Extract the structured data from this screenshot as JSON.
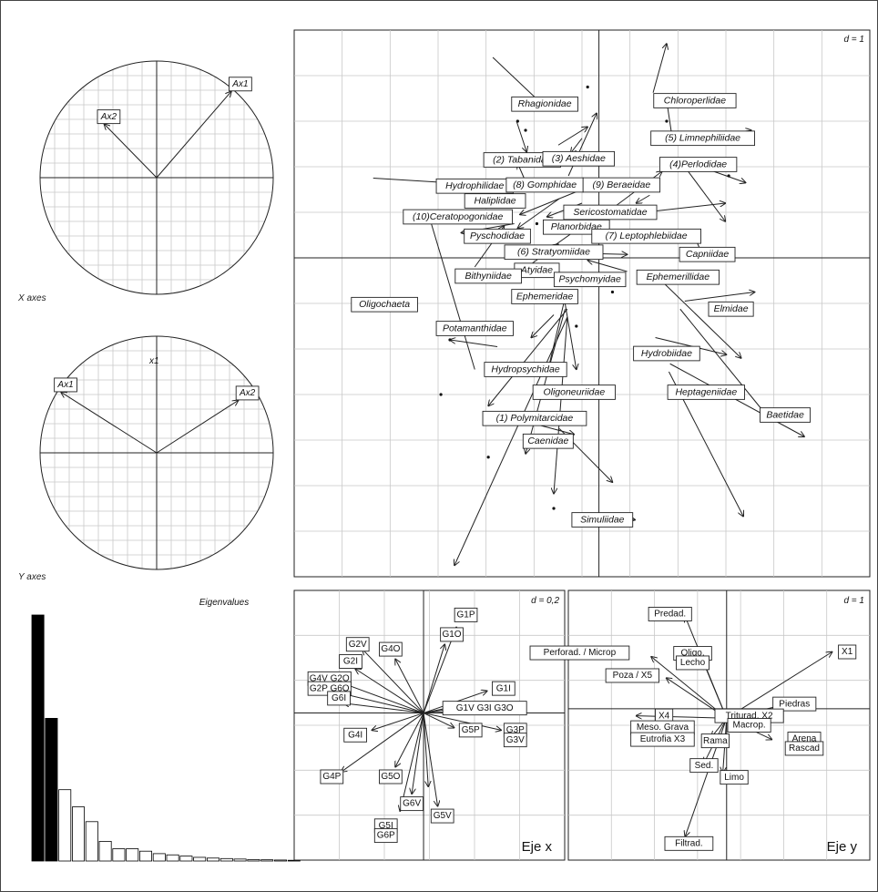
{
  "captions": {
    "x_axes": "X axes",
    "y_axes": "Y axes",
    "eigenvalues": "Eigenvalues"
  },
  "chart_data": [
    {
      "id": "circle-x",
      "type": "scatter",
      "title": "X axes",
      "subtitle": "",
      "arrows": [
        {
          "label": "Ax1",
          "x": 0.64,
          "y": 0.74
        },
        {
          "label": "Ax2",
          "x": -0.45,
          "y": 0.46
        }
      ],
      "xlim": [
        -1,
        1
      ],
      "ylim": [
        -1,
        1
      ],
      "grid": true
    },
    {
      "id": "circle-y",
      "type": "scatter",
      "title": "Y axes",
      "axis_label": "x1",
      "arrows": [
        {
          "label": "Ax1",
          "x": -0.82,
          "y": 0.52
        },
        {
          "label": "Ax2",
          "x": 0.7,
          "y": 0.45
        }
      ],
      "xlim": [
        -1,
        1
      ],
      "ylim": [
        -1,
        1
      ],
      "grid": true
    },
    {
      "id": "eigen",
      "type": "bar",
      "title": "Eigenvalues",
      "values": [
        100,
        58,
        29,
        22,
        16,
        8,
        5,
        5,
        4,
        3,
        2.5,
        2,
        1.5,
        1.2,
        1,
        0.8,
        0.6,
        0.5,
        0.4,
        0.3
      ],
      "filled_count": 2,
      "ylim": [
        0,
        100
      ]
    },
    {
      "id": "taxa",
      "type": "scatter",
      "title": "",
      "scale_label": "d = 1",
      "xlim": [
        -2.7,
        2.4
      ],
      "ylim": [
        -2.8,
        2.0
      ],
      "grid": true,
      "labels": [
        {
          "text": "Rhagionidae",
          "x": -0.48,
          "y": 1.35
        },
        {
          "text": "Chloroperlidae",
          "x": 0.85,
          "y": 1.38
        },
        {
          "text": "(5) Limnephiliidae",
          "x": 0.92,
          "y": 1.05
        },
        {
          "text": "(2) Tabanidae",
          "x": -0.68,
          "y": 0.86
        },
        {
          "text": "(3) Aeshidae",
          "x": -0.18,
          "y": 0.87
        },
        {
          "text": "(4)Perlodidae",
          "x": 0.88,
          "y": 0.82
        },
        {
          "text": "Hydrophilidae",
          "x": -1.1,
          "y": 0.63
        },
        {
          "text": "(8) Gomphidae",
          "x": -0.48,
          "y": 0.64
        },
        {
          "text": "(9) Beraeidae",
          "x": 0.2,
          "y": 0.64
        },
        {
          "text": "Haliplidae",
          "x": -0.92,
          "y": 0.5
        },
        {
          "text": "Sericostomatidae",
          "x": 0.1,
          "y": 0.4
        },
        {
          "text": "(10)Ceratopogonidae",
          "x": -1.25,
          "y": 0.36
        },
        {
          "text": "Planorbidae",
          "x": -0.2,
          "y": 0.27
        },
        {
          "text": "(7) Leptophlebiidae",
          "x": 0.42,
          "y": 0.19
        },
        {
          "text": "Pyschodidae",
          "x": -0.9,
          "y": 0.19
        },
        {
          "text": "Capniidae",
          "x": 0.96,
          "y": 0.03
        },
        {
          "text": "(6) Stratyomiidae",
          "x": -0.4,
          "y": 0.05
        },
        {
          "text": "Atyidae",
          "x": -0.55,
          "y": -0.11
        },
        {
          "text": "Psychomyidae",
          "x": -0.08,
          "y": -0.19
        },
        {
          "text": "Ephemerillidae",
          "x": 0.7,
          "y": -0.17
        },
        {
          "text": "Bithyniidae",
          "x": -0.98,
          "y": -0.16
        },
        {
          "text": "Oligochaeta",
          "x": -1.9,
          "y": -0.41
        },
        {
          "text": "Ephemeridae",
          "x": -0.48,
          "y": -0.34
        },
        {
          "text": "Elmidae",
          "x": 1.17,
          "y": -0.45
        },
        {
          "text": "Potamanthidae",
          "x": -1.1,
          "y": -0.62
        },
        {
          "text": "Hydrobiidae",
          "x": 0.6,
          "y": -0.84
        },
        {
          "text": "Hydropsychidae",
          "x": -0.65,
          "y": -0.98
        },
        {
          "text": "Oligoneuriidae",
          "x": -0.22,
          "y": -1.18
        },
        {
          "text": "Heptageniidae",
          "x": 0.95,
          "y": -1.18
        },
        {
          "text": "Baetidae",
          "x": 1.65,
          "y": -1.38
        },
        {
          "text": "(1) Polymitarcidae",
          "x": -0.57,
          "y": -1.41
        },
        {
          "text": "Caenidae",
          "x": -0.45,
          "y": -1.61
        },
        {
          "text": "Simuliidae",
          "x": 0.03,
          "y": -2.3
        }
      ],
      "arrows": [
        {
          "x0": -0.94,
          "y0": 1.76,
          "x1": -0.45,
          "y1": 1.3
        },
        {
          "x0": -0.73,
          "y0": 1.2,
          "x1": -0.64,
          "y1": 0.93
        },
        {
          "x0": -0.15,
          "y0": 1.05,
          "x1": -0.25,
          "y1": 0.92
        },
        {
          "x0": -0.36,
          "y0": 0.99,
          "x1": -0.1,
          "y1": 1.15
        },
        {
          "x0": -0.27,
          "y0": 0.72,
          "x1": -0.02,
          "y1": 1.27
        },
        {
          "x0": 0.48,
          "y0": 1.45,
          "x1": 0.6,
          "y1": 1.88
        },
        {
          "x0": 0.6,
          "y0": 1.38,
          "x1": 0.65,
          "y1": 1.05
        },
        {
          "x0": 0.55,
          "y0": 1.0,
          "x1": 1.35,
          "y1": 1.12
        },
        {
          "x0": 0.7,
          "y0": 0.88,
          "x1": 1.12,
          "y1": 0.32
        },
        {
          "x0": 0.9,
          "y0": 0.8,
          "x1": 1.3,
          "y1": 0.66
        },
        {
          "x0": -2.0,
          "y0": 0.7,
          "x1": -1.18,
          "y1": 0.65
        },
        {
          "x0": -0.88,
          "y0": 0.68,
          "x1": -1.22,
          "y1": 0.6
        },
        {
          "x0": -0.65,
          "y0": 0.67,
          "x1": -0.72,
          "y1": 0.83
        },
        {
          "x0": 0.05,
          "y0": 0.68,
          "x1": -0.7,
          "y1": 0.38
        },
        {
          "x0": -0.35,
          "y0": 0.52,
          "x1": -0.72,
          "y1": 0.26
        },
        {
          "x0": -0.15,
          "y0": 0.48,
          "x1": -0.46,
          "y1": 0.36
        },
        {
          "x0": 0.1,
          "y0": 0.42,
          "x1": 0.56,
          "y1": 0.76
        },
        {
          "x0": 0.45,
          "y0": 0.55,
          "x1": 0.33,
          "y1": 0.48
        },
        {
          "x0": 0.22,
          "y0": 0.38,
          "x1": 1.12,
          "y1": 0.48
        },
        {
          "x0": -0.75,
          "y0": 0.3,
          "x1": -1.22,
          "y1": 0.22
        },
        {
          "x0": -0.15,
          "y0": 0.28,
          "x1": -0.52,
          "y1": 0.02
        },
        {
          "x0": 0.22,
          "y0": 0.2,
          "x1": 0.84,
          "y1": 0.16
        },
        {
          "x0": 0.85,
          "y0": 0.18,
          "x1": 0.92,
          "y1": 0.02
        },
        {
          "x0": -1.1,
          "y0": -0.08,
          "x1": -0.84,
          "y1": 0.28
        },
        {
          "x0": -1.1,
          "y0": -0.98,
          "x1": -1.5,
          "y1": 0.35
        },
        {
          "x0": -0.8,
          "y0": -0.2,
          "x1": -0.36,
          "y1": 0.12
        },
        {
          "x0": 0.25,
          "y0": -0.12,
          "x1": -0.1,
          "y1": -0.02
        },
        {
          "x0": -0.15,
          "y0": 0.04,
          "x1": 0.25,
          "y1": 0.03
        },
        {
          "x0": 0.5,
          "y0": -0.15,
          "x1": 1.26,
          "y1": -0.88
        },
        {
          "x0": 0.76,
          "y0": -0.38,
          "x1": 1.38,
          "y1": -0.3
        },
        {
          "x0": 0.72,
          "y0": -0.45,
          "x1": 1.5,
          "y1": -1.4
        },
        {
          "x0": 0.5,
          "y0": -0.7,
          "x1": 1.13,
          "y1": -0.85
        },
        {
          "x0": -0.9,
          "y0": -0.78,
          "x1": -1.32,
          "y1": -0.72
        },
        {
          "x0": -0.3,
          "y0": -0.35,
          "x1": -0.45,
          "y1": -0.98
        },
        {
          "x0": -0.3,
          "y0": -0.4,
          "x1": -0.2,
          "y1": -0.98
        },
        {
          "x0": -0.4,
          "y0": -0.5,
          "x1": -0.6,
          "y1": -0.7
        },
        {
          "x0": -0.3,
          "y0": -0.45,
          "x1": -0.65,
          "y1": -1.72
        },
        {
          "x0": -0.28,
          "y0": -0.45,
          "x1": -0.98,
          "y1": -1.3
        },
        {
          "x0": -0.28,
          "y0": -0.52,
          "x1": -0.4,
          "y1": -2.07
        },
        {
          "x0": -0.28,
          "y0": -0.52,
          "x1": -1.28,
          "y1": -2.7
        },
        {
          "x0": -0.6,
          "y0": -1.45,
          "x1": -0.22,
          "y1": -1.55
        },
        {
          "x0": -0.35,
          "y0": -1.5,
          "x1": 0.12,
          "y1": -1.97
        },
        {
          "x0": 0.63,
          "y0": -0.93,
          "x1": 1.82,
          "y1": -1.57
        },
        {
          "x0": 0.62,
          "y0": -1.0,
          "x1": 1.28,
          "y1": -2.27
        },
        {
          "x0": -0.06,
          "y0": -2.24,
          "x1": 0.32,
          "y1": -2.3
        }
      ],
      "points": [
        {
          "x": -0.1,
          "y": 1.5
        },
        {
          "x": -0.72,
          "y": 1.2
        },
        {
          "x": -0.65,
          "y": 1.12
        },
        {
          "x": 0.6,
          "y": 1.2
        },
        {
          "x": 1.15,
          "y": 0.72
        },
        {
          "x": -0.75,
          "y": 0.55
        },
        {
          "x": -1.5,
          "y": 0.4
        },
        {
          "x": -0.55,
          "y": 0.3
        },
        {
          "x": 0.12,
          "y": -0.3
        },
        {
          "x": -1.32,
          "y": -0.72
        },
        {
          "x": -1.4,
          "y": -1.2
        },
        {
          "x": -0.98,
          "y": -1.75
        },
        {
          "x": -0.2,
          "y": -0.6
        },
        {
          "x": -0.4,
          "y": -2.2
        }
      ]
    },
    {
      "id": "eje-x",
      "type": "scatter",
      "title": "Eje x",
      "scale_label": "d = 0,2",
      "labels": [
        {
          "text": "G1P",
          "x": 0.18,
          "y": 0.4
        },
        {
          "text": "G1O",
          "x": 0.12,
          "y": 0.32
        },
        {
          "text": "G2V",
          "x": -0.28,
          "y": 0.28
        },
        {
          "text": "G4O",
          "x": -0.14,
          "y": 0.26
        },
        {
          "text": "G2I",
          "x": -0.31,
          "y": 0.21
        },
        {
          "text": "G1I",
          "x": 0.34,
          "y": 0.1
        },
        {
          "text": "G4V G2O",
          "x": -0.4,
          "y": 0.14
        },
        {
          "text": "G2P G6O",
          "x": -0.4,
          "y": 0.1
        },
        {
          "text": "G6I",
          "x": -0.36,
          "y": 0.06
        },
        {
          "text": "G1V   G3I   G3O",
          "x": 0.26,
          "y": 0.02
        },
        {
          "text": "G4I",
          "x": -0.29,
          "y": -0.09
        },
        {
          "text": "G5P",
          "x": 0.2,
          "y": -0.07
        },
        {
          "text": "G3P",
          "x": 0.39,
          "y": -0.07
        },
        {
          "text": "G3V",
          "x": 0.39,
          "y": -0.11
        },
        {
          "text": "G4P",
          "x": -0.39,
          "y": -0.26
        },
        {
          "text": "G5O",
          "x": -0.14,
          "y": -0.26
        },
        {
          "text": "G6V",
          "x": -0.05,
          "y": -0.37
        },
        {
          "text": "G5V",
          "x": 0.08,
          "y": -0.42
        },
        {
          "text": "G5I",
          "x": -0.16,
          "y": -0.46
        },
        {
          "text": "G6P",
          "x": -0.16,
          "y": -0.5
        }
      ],
      "arrows": [
        {
          "x1": 0.14,
          "y1": 0.35
        },
        {
          "x1": 0.09,
          "y1": 0.28
        },
        {
          "x1": -0.26,
          "y1": 0.26
        },
        {
          "x1": -0.12,
          "y1": 0.22
        },
        {
          "x1": -0.29,
          "y1": 0.18
        },
        {
          "x1": 0.27,
          "y1": 0.09
        },
        {
          "x1": -0.34,
          "y1": 0.12
        },
        {
          "x1": -0.35,
          "y1": 0.08
        },
        {
          "x1": -0.34,
          "y1": 0.04
        },
        {
          "x1": 0.22,
          "y1": 0.03
        },
        {
          "x1": 0.2,
          "y1": 0.04
        },
        {
          "x1": 0.28,
          "y1": 0.01
        },
        {
          "x1": -0.22,
          "y1": -0.07
        },
        {
          "x1": 0.13,
          "y1": -0.06
        },
        {
          "x1": 0.33,
          "y1": -0.07
        },
        {
          "x1": -0.35,
          "y1": -0.24
        },
        {
          "x1": -0.12,
          "y1": -0.22
        },
        {
          "x1": -0.05,
          "y1": -0.33
        },
        {
          "x1": 0.06,
          "y1": -0.38
        },
        {
          "x1": -0.1,
          "y1": -0.4
        },
        {
          "x1": 0.02,
          "y1": -0.3
        }
      ],
      "xlim": [
        -0.55,
        0.6
      ],
      "ylim": [
        -0.6,
        0.5
      ],
      "grid": true
    },
    {
      "id": "eje-y",
      "type": "scatter",
      "title": "Eje y",
      "scale_label": "d = 1",
      "labels": [
        {
          "text": "Predad.",
          "x": -0.75,
          "y": 2.0
        },
        {
          "text": "Perforad. / Microp",
          "x": -1.95,
          "y": 1.18
        },
        {
          "text": "Oligo.",
          "x": -0.45,
          "y": 1.17
        },
        {
          "text": "Lecho",
          "x": -0.45,
          "y": 0.97
        },
        {
          "text": "X1",
          "x": 1.6,
          "y": 1.2
        },
        {
          "text": "Poza / X5",
          "x": -1.25,
          "y": 0.7
        },
        {
          "text": "Piedras",
          "x": 0.9,
          "y": 0.1
        },
        {
          "text": "X4",
          "x": -0.83,
          "y": -0.15
        },
        {
          "text": "Triturad. X2",
          "x": 0.3,
          "y": -0.15
        },
        {
          "text": "Macrop.",
          "x": 0.3,
          "y": -0.35
        },
        {
          "text": "Meso. Grava",
          "x": -0.85,
          "y": -0.4
        },
        {
          "text": "Eutrofia X3",
          "x": -0.85,
          "y": -0.65
        },
        {
          "text": "Rama",
          "x": -0.15,
          "y": -0.68
        },
        {
          "text": "Arena",
          "x": 1.03,
          "y": -0.64
        },
        {
          "text": "Rascad",
          "x": 1.03,
          "y": -0.84
        },
        {
          "text": "Sed.",
          "x": -0.3,
          "y": -1.2
        },
        {
          "text": "Limo",
          "x": 0.1,
          "y": -1.45
        },
        {
          "text": "Filtrad.",
          "x": -0.5,
          "y": -2.85
        }
      ],
      "arrows": [
        {
          "x0": 0.0,
          "y0": -0.2,
          "x1": -0.55,
          "y1": 1.95
        },
        {
          "x0": 0.0,
          "y0": -0.2,
          "x1": -1.0,
          "y1": 1.1
        },
        {
          "x0": 0.0,
          "y0": -0.2,
          "x1": -0.3,
          "y1": 0.95
        },
        {
          "x0": 0.0,
          "y0": -0.2,
          "x1": 1.4,
          "y1": 1.2
        },
        {
          "x0": 0.0,
          "y0": -0.2,
          "x1": -0.8,
          "y1": 0.65
        },
        {
          "x0": 0.0,
          "y0": -0.2,
          "x1": 0.95,
          "y1": 0.15
        },
        {
          "x0": 0.0,
          "y0": -0.2,
          "x1": -1.2,
          "y1": -0.15
        },
        {
          "x0": 0.0,
          "y0": -0.2,
          "x1": 0.75,
          "y1": -0.1
        },
        {
          "x0": 0.0,
          "y0": -0.2,
          "x1": 0.55,
          "y1": -0.25
        },
        {
          "x0": 0.0,
          "y0": -0.2,
          "x1": -0.2,
          "y1": -0.6
        },
        {
          "x0": 0.0,
          "y0": -0.2,
          "x1": 0.6,
          "y1": -0.65
        },
        {
          "x0": 0.0,
          "y0": -0.2,
          "x1": -0.3,
          "y1": -1.15
        },
        {
          "x0": 0.0,
          "y0": -0.2,
          "x1": -0.05,
          "y1": -1.35
        },
        {
          "x0": 0.0,
          "y0": -0.2,
          "x1": -0.55,
          "y1": -2.7
        }
      ],
      "xlim": [
        -2.1,
        1.9
      ],
      "ylim": [
        -3.2,
        2.5
      ],
      "grid": true
    }
  ]
}
